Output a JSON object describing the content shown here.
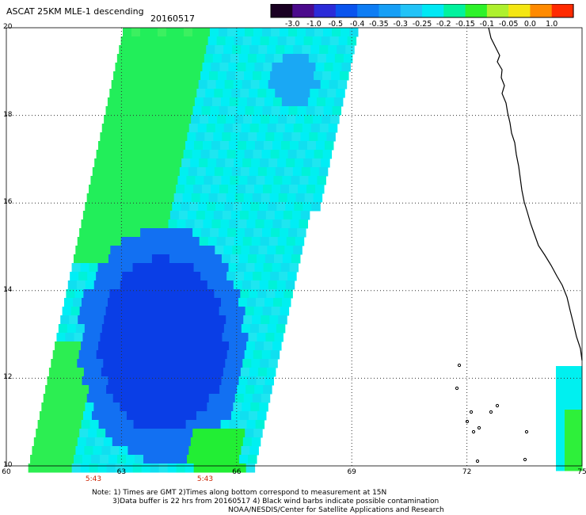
{
  "header": {
    "title": "ASCAT 25KM MLE-1 descending",
    "date": "20160517"
  },
  "colorbar": {
    "labels": [
      "-3.0",
      "-1.0",
      "-0.5",
      "-0.4",
      "-0.35",
      "-0.3",
      "-0.25",
      "-0.2",
      "-0.15",
      "-0.1",
      "-0.05",
      "0.0",
      "1.0"
    ],
    "colors": [
      "#1a0022",
      "#4b0a8c",
      "#2b2bd8",
      "#0a54ee",
      "#0e7df4",
      "#169ff6",
      "#22c3f7",
      "#00e8f4",
      "#00f29d",
      "#2ef22a",
      "#aef02e",
      "#f4e612",
      "#ff8a00",
      "#ff2a00"
    ]
  },
  "axes": {
    "lon_labels": [
      "60",
      "63",
      "66",
      "69",
      "72",
      "75"
    ],
    "lat_labels": [
      "20",
      "18",
      "16",
      "14",
      "12",
      "10"
    ],
    "lon_range": [
      60,
      75
    ],
    "lat_range": [
      10,
      20
    ],
    "grid": "dotted"
  },
  "pass_times": [
    "5:43",
    "5:43"
  ],
  "notes": [
    "Note: 1) Times are GMT 2)Times along bottom correspond to measurement at 15N",
    "3)Data buffer is 22 hrs from 20160517 4) Black wind barbs indicate possible contamination",
    "NOAA/NESDIS/Center for Satellite Applications and Research"
  ],
  "colors": {
    "swath_dominant": "#00f0f0",
    "swath_low": "#0a5af0",
    "swath_high": "#22ee44",
    "coastline": "#000000"
  }
}
